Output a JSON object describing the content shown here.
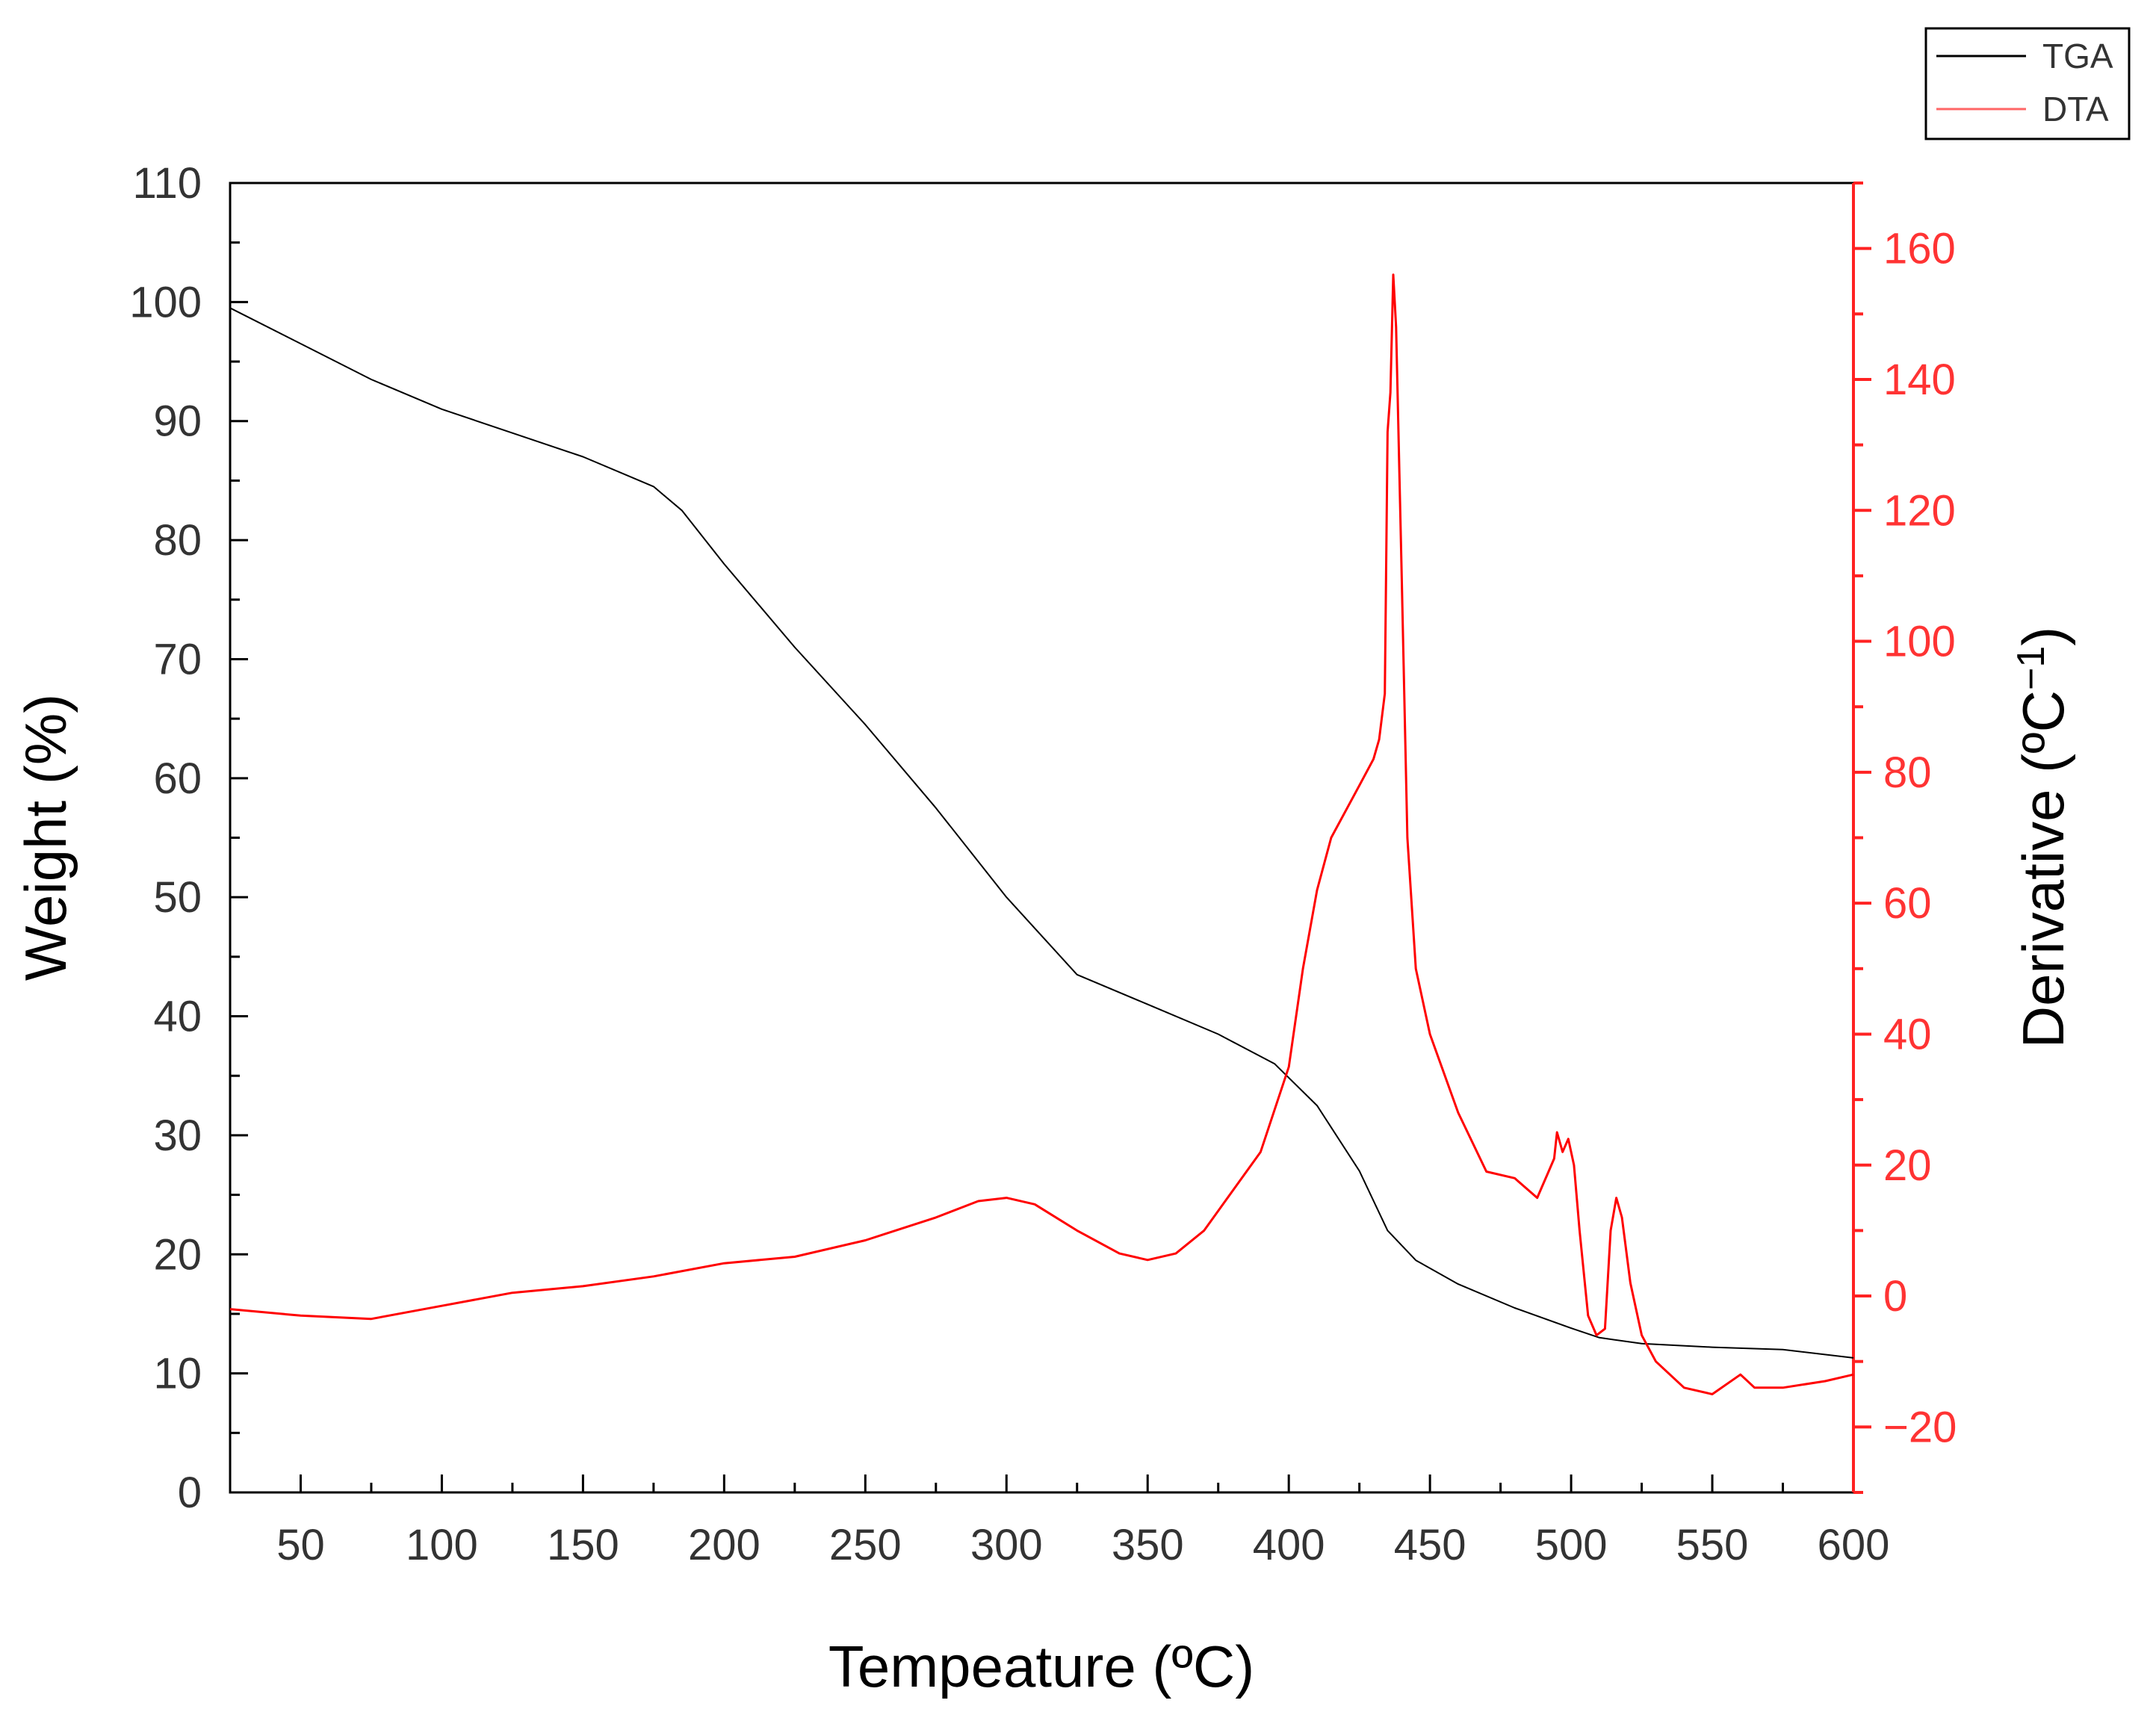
{
  "chart_data": {
    "type": "line",
    "title": "",
    "xlabel": "Tempeature (ºC)",
    "ylabel_left": "Weight (%)",
    "ylabel_right_main": "Derivative (ºC",
    "ylabel_right_sup": "−1",
    "ylabel_right_close": ")",
    "xlim": [
      25,
      600
    ],
    "ylim_left": [
      0,
      110
    ],
    "ylim_right": [
      -30,
      170
    ],
    "x_ticks": [
      "50",
      "100",
      "150",
      "200",
      "250",
      "300",
      "350",
      "400",
      "450",
      "500",
      "550",
      "600"
    ],
    "y_left_ticks": [
      "0",
      "10",
      "20",
      "30",
      "40",
      "50",
      "60",
      "70",
      "80",
      "90",
      "100",
      "110"
    ],
    "y_right_ticks": [
      "−20",
      "0",
      "20",
      "40",
      "60",
      "80",
      "100",
      "120",
      "140",
      "160"
    ],
    "grid": false,
    "legend_position": "top-right, outside plot",
    "series": [
      {
        "name": "TGA",
        "axis": "left",
        "color": "#000000",
        "x": [
          25,
          50,
          75,
          100,
          125,
          150,
          175,
          185,
          200,
          225,
          250,
          275,
          300,
          325,
          350,
          375,
          395,
          410,
          425,
          435,
          445,
          460,
          480,
          500,
          510,
          525,
          550,
          575,
          600
        ],
        "y": [
          99.5,
          96.5,
          93.5,
          91.0,
          89.0,
          87.0,
          84.5,
          82.5,
          78.0,
          71.0,
          64.5,
          57.5,
          50.0,
          43.5,
          41.0,
          38.5,
          36.0,
          32.5,
          27.0,
          22.0,
          19.5,
          17.5,
          15.5,
          13.8,
          13.0,
          12.5,
          12.2,
          12.0,
          11.3
        ]
      },
      {
        "name": "DTA",
        "axis": "right",
        "color": "#ff0000",
        "x": [
          25,
          50,
          75,
          100,
          125,
          150,
          175,
          200,
          225,
          250,
          275,
          290,
          300,
          310,
          325,
          340,
          350,
          360,
          370,
          380,
          390,
          400,
          405,
          410,
          415,
          425,
          430,
          432,
          434,
          435,
          436,
          437,
          438,
          440,
          442,
          445,
          450,
          460,
          470,
          480,
          488,
          490,
          492,
          494,
          495,
          497,
          499,
          501,
          503,
          506,
          509,
          512,
          514,
          516,
          518,
          521,
          525,
          530,
          540,
          550,
          560,
          565,
          575,
          590,
          600
        ],
        "y": [
          -2,
          -3,
          -3.5,
          -1.5,
          0.5,
          1.5,
          3,
          5,
          6,
          8.5,
          12,
          14.5,
          15,
          14,
          10,
          6.5,
          5.5,
          6.5,
          10,
          16,
          22,
          35,
          50,
          62,
          70,
          78,
          82,
          85,
          92,
          132,
          138,
          156,
          148,
          110,
          70,
          50,
          40,
          28,
          19,
          18,
          15,
          17,
          19,
          21,
          25,
          22,
          24,
          20,
          10,
          -3,
          -6,
          -5,
          10,
          15,
          12,
          2,
          -6,
          -10,
          -14,
          -15,
          -12,
          -14,
          -14,
          -13,
          -12
        ]
      }
    ]
  }
}
